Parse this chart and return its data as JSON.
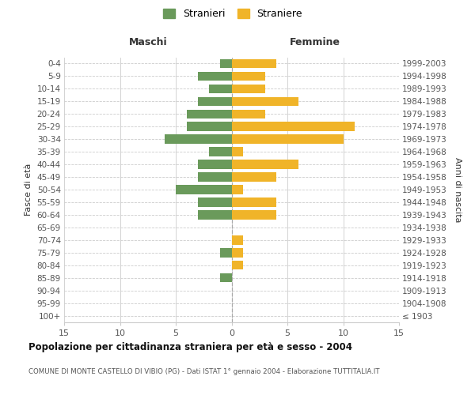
{
  "age_groups": [
    "100+",
    "95-99",
    "90-94",
    "85-89",
    "80-84",
    "75-79",
    "70-74",
    "65-69",
    "60-64",
    "55-59",
    "50-54",
    "45-49",
    "40-44",
    "35-39",
    "30-34",
    "25-29",
    "20-24",
    "15-19",
    "10-14",
    "5-9",
    "0-4"
  ],
  "birth_years": [
    "≤ 1903",
    "1904-1908",
    "1909-1913",
    "1914-1918",
    "1919-1923",
    "1924-1928",
    "1929-1933",
    "1934-1938",
    "1939-1943",
    "1944-1948",
    "1949-1953",
    "1954-1958",
    "1959-1963",
    "1964-1968",
    "1969-1973",
    "1974-1978",
    "1979-1983",
    "1984-1988",
    "1989-1993",
    "1994-1998",
    "1999-2003"
  ],
  "males": [
    0,
    0,
    0,
    1,
    0,
    1,
    0,
    0,
    3,
    3,
    5,
    3,
    3,
    2,
    6,
    4,
    4,
    3,
    2,
    3,
    1
  ],
  "females": [
    0,
    0,
    0,
    0,
    1,
    1,
    1,
    0,
    4,
    4,
    1,
    4,
    6,
    1,
    10,
    11,
    3,
    6,
    3,
    3,
    4
  ],
  "male_color": "#6a9a5b",
  "female_color": "#f0b429",
  "xlim": 15,
  "title": "Popolazione per cittadinanza straniera per età e sesso - 2004",
  "subtitle": "COMUNE DI MONTE CASTELLO DI VIBIO (PG) - Dati ISTAT 1° gennaio 2004 - Elaborazione TUTTITALIA.IT",
  "ylabel_left": "Fasce di età",
  "ylabel_right": "Anni di nascita",
  "xlabel_left": "Maschi",
  "xlabel_right": "Femmine",
  "legend_male": "Stranieri",
  "legend_female": "Straniere",
  "bg_color": "#ffffff",
  "grid_color": "#cccccc",
  "grid_color_dashed": "#aaaaaa"
}
